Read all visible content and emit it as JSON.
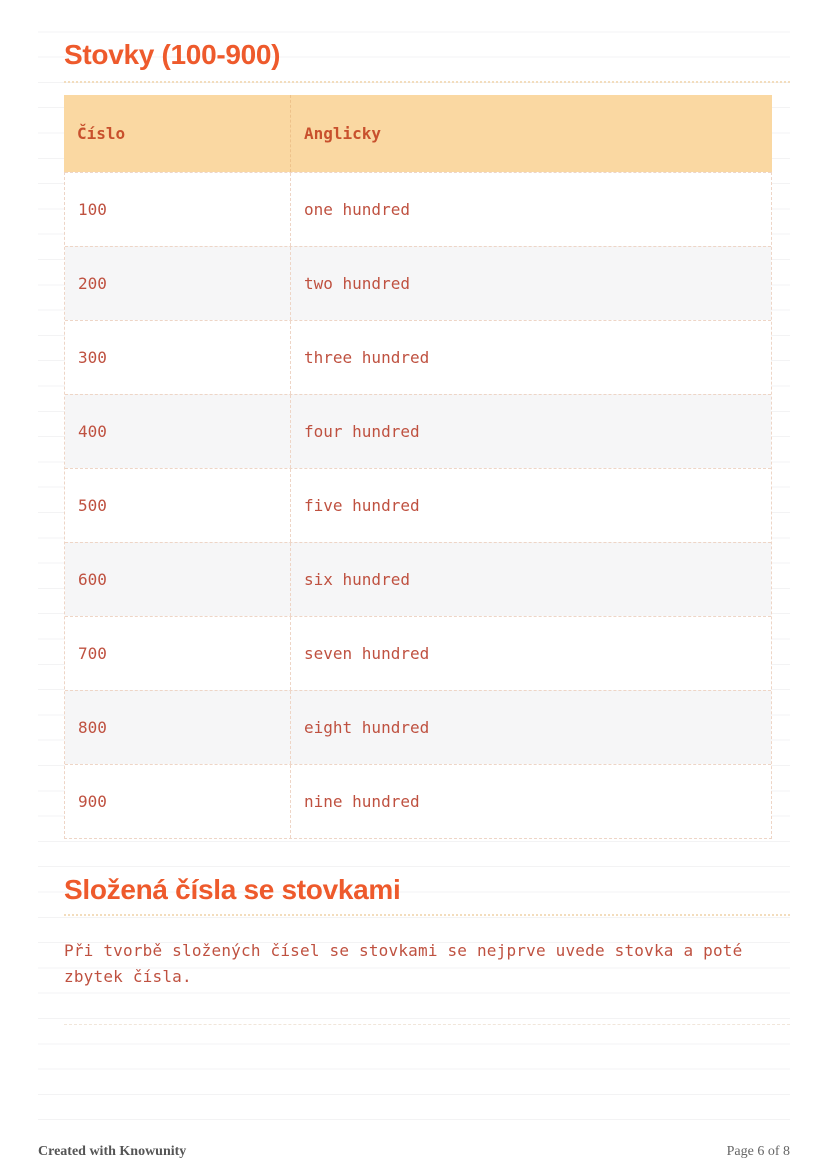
{
  "colors": {
    "accent": "#ee5a2c",
    "header_bg": "#fad8a2",
    "header_text": "#c8502d",
    "header_divider": "#eec28a",
    "table_text": "#bf5140",
    "row_alt": "#f6f6f7",
    "dash": "#eed5c6",
    "dotted_underline": "#f3ddbd",
    "faint_divider": "#f1e6da",
    "ruling": "#f3f3f4",
    "footer_left": "#555555",
    "footer_right": "#666666"
  },
  "section1": {
    "title": "Stovky (100-900)"
  },
  "table": {
    "columns": [
      "Číslo",
      "Anglicky"
    ],
    "rows": [
      {
        "cislo": "100",
        "anglicky": "one hundred"
      },
      {
        "cislo": "200",
        "anglicky": "two hundred"
      },
      {
        "cislo": "300",
        "anglicky": "three hundred"
      },
      {
        "cislo": "400",
        "anglicky": "four hundred"
      },
      {
        "cislo": "500",
        "anglicky": "five hundred"
      },
      {
        "cislo": "600",
        "anglicky": "six hundred"
      },
      {
        "cislo": "700",
        "anglicky": "seven hundred"
      },
      {
        "cislo": "800",
        "anglicky": "eight hundred"
      },
      {
        "cislo": "900",
        "anglicky": "nine hundred"
      }
    ]
  },
  "section2": {
    "title": "Složená čísla se stovkami",
    "paragraph": "Při tvorbě složených čísel se stovkami se nejprve uvede stovka a poté zbytek čísla."
  },
  "footer": {
    "created": "Created with Knowunity",
    "page": "Page 6 of 8"
  }
}
